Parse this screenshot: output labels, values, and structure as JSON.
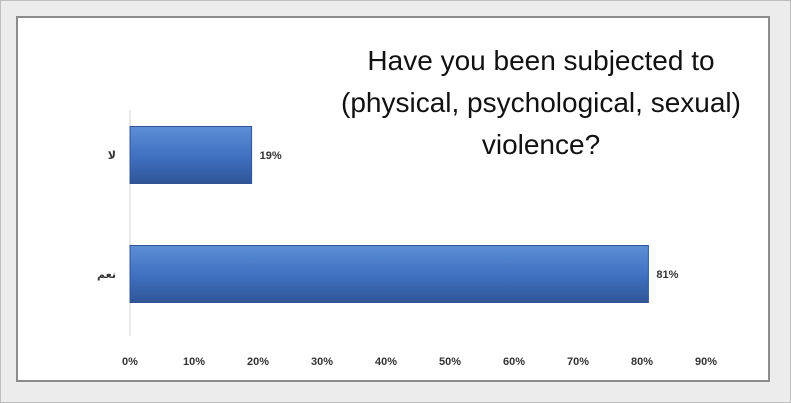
{
  "chart_data": {
    "type": "bar",
    "orientation": "horizontal",
    "title": "Have you been subjected to (physical, psychological, sexual) violence?",
    "categories": [
      "لا",
      "نعم"
    ],
    "values": [
      19,
      81
    ],
    "value_labels": [
      "19%",
      "81%"
    ],
    "xlim": [
      0,
      90
    ],
    "xticks": [
      "0%",
      "10%",
      "20%",
      "30%",
      "40%",
      "50%",
      "60%",
      "70%",
      "80%",
      "90%"
    ],
    "grid": false,
    "legend": "none",
    "bar_color": "#4472c4"
  }
}
